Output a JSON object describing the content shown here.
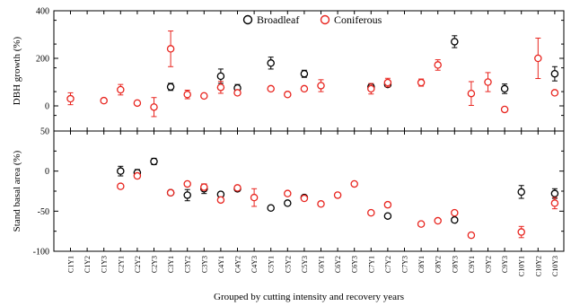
{
  "chart_data": [
    {
      "type": "scatter",
      "ylabel": "DBH growth (%)",
      "ylim": [
        -40,
        400
      ],
      "yticks": [
        0,
        200,
        400
      ],
      "categories": [
        "C1Y1",
        "C1Y2",
        "C1Y3",
        "C2Y1",
        "C2Y2",
        "C2Y3",
        "C3Y1",
        "C3Y2",
        "C3Y3",
        "C4Y1",
        "C4Y2",
        "C4Y3",
        "C5Y1",
        "C5Y2",
        "C5Y3",
        "C6Y1",
        "C6Y2",
        "C6Y3",
        "C7Y1",
        "C7Y2",
        "C7Y3",
        "C8Y1",
        "C8Y2",
        "C8Y3",
        "C9Y1",
        "C9Y2",
        "C9Y3",
        "C10Y1",
        "C10Y2",
        "C10Y3"
      ],
      "series": [
        {
          "name": "Broadleaf",
          "color": "#000000",
          "marker": "open-circle",
          "points": [
            {
              "x": "C3Y1",
              "y": 80,
              "err": 15
            },
            {
              "x": "C4Y1",
              "y": 125,
              "err": 30
            },
            {
              "x": "C4Y2",
              "y": 75,
              "err": 15
            },
            {
              "x": "C5Y1",
              "y": 180,
              "err": 25
            },
            {
              "x": "C5Y3",
              "y": 135,
              "err": 15
            },
            {
              "x": "C7Y1",
              "y": 80,
              "err": 10
            },
            {
              "x": "C7Y2",
              "y": 90,
              "err": 10
            },
            {
              "x": "C8Y3",
              "y": 270,
              "err": 25
            },
            {
              "x": "C9Y3",
              "y": 72,
              "err": 20
            },
            {
              "x": "C10Y3",
              "y": 135,
              "err": 30
            }
          ]
        },
        {
          "name": "Coniferous",
          "color": "#e8251f",
          "marker": "open-circle",
          "points": [
            {
              "x": "C1Y1",
              "y": 30,
              "err": 25
            },
            {
              "x": "C1Y3",
              "y": 22,
              "err": 4
            },
            {
              "x": "C2Y1",
              "y": 68,
              "err": 22
            },
            {
              "x": "C2Y2",
              "y": 12,
              "err": 6
            },
            {
              "x": "C2Y3",
              "y": -5,
              "err": 40
            },
            {
              "x": "C3Y1",
              "y": 240,
              "err": 75
            },
            {
              "x": "C3Y2",
              "y": 48,
              "err": 18
            },
            {
              "x": "C3Y3",
              "y": 42,
              "err": 6
            },
            {
              "x": "C4Y1",
              "y": 78,
              "err": 25
            },
            {
              "x": "C4Y2",
              "y": 55,
              "err": 6
            },
            {
              "x": "C5Y1",
              "y": 72,
              "err": 8
            },
            {
              "x": "C5Y2",
              "y": 48,
              "err": 5
            },
            {
              "x": "C5Y3",
              "y": 72,
              "err": 5
            },
            {
              "x": "C6Y1",
              "y": 85,
              "err": 25
            },
            {
              "x": "C7Y1",
              "y": 72,
              "err": 22
            },
            {
              "x": "C7Y2",
              "y": 98,
              "err": 18
            },
            {
              "x": "C8Y1",
              "y": 98,
              "err": 15
            },
            {
              "x": "C8Y2",
              "y": 172,
              "err": 22
            },
            {
              "x": "C9Y1",
              "y": 52,
              "err": 50
            },
            {
              "x": "C9Y2",
              "y": 100,
              "err": 40
            },
            {
              "x": "C9Y3",
              "y": -15,
              "err": 6
            },
            {
              "x": "C10Y2",
              "y": 200,
              "err": 85
            },
            {
              "x": "C10Y3",
              "y": 55,
              "err": 8
            }
          ]
        }
      ]
    },
    {
      "type": "scatter",
      "ylabel": "Stand basal area (%)",
      "xlabel": "Grouped by cutting intensity and recovery years",
      "ylim": [
        -100,
        50
      ],
      "yticks": [
        -100,
        -50,
        0,
        50
      ],
      "categories": [
        "C1Y1",
        "C1Y2",
        "C1Y3",
        "C2Y1",
        "C2Y2",
        "C2Y3",
        "C3Y1",
        "C3Y2",
        "C3Y3",
        "C4Y1",
        "C4Y2",
        "C4Y3",
        "C5Y1",
        "C5Y2",
        "C5Y3",
        "C6Y1",
        "C6Y2",
        "C6Y3",
        "C7Y1",
        "C7Y2",
        "C7Y3",
        "C8Y1",
        "C8Y2",
        "C8Y3",
        "C9Y1",
        "C9Y2",
        "C9Y3",
        "C10Y1",
        "C10Y2",
        "C10Y3"
      ],
      "series": [
        {
          "name": "Broadleaf",
          "color": "#000000",
          "marker": "open-circle",
          "points": [
            {
              "x": "C2Y1",
              "y": 0,
              "err": 6
            },
            {
              "x": "C2Y2",
              "y": -2,
              "err": 4
            },
            {
              "x": "C2Y3",
              "y": 12,
              "err": 4
            },
            {
              "x": "C3Y1",
              "y": -27,
              "err": 2
            },
            {
              "x": "C3Y2",
              "y": -30,
              "err": 7
            },
            {
              "x": "C3Y3",
              "y": -22,
              "err": 6
            },
            {
              "x": "C4Y1",
              "y": -29,
              "err": 3
            },
            {
              "x": "C4Y2",
              "y": -22,
              "err": 3
            },
            {
              "x": "C5Y1",
              "y": -46,
              "err": 2
            },
            {
              "x": "C5Y2",
              "y": -40,
              "err": 2
            },
            {
              "x": "C5Y3",
              "y": -33,
              "err": 3
            },
            {
              "x": "C7Y2",
              "y": -56,
              "err": 2
            },
            {
              "x": "C8Y3",
              "y": -61,
              "err": 2
            },
            {
              "x": "C10Y1",
              "y": -26,
              "err": 8
            },
            {
              "x": "C10Y3",
              "y": -28,
              "err": 6
            }
          ]
        },
        {
          "name": "Coniferous",
          "color": "#e8251f",
          "marker": "open-circle",
          "points": [
            {
              "x": "C2Y1",
              "y": -19,
              "err": 2
            },
            {
              "x": "C2Y2",
              "y": -6,
              "err": 3
            },
            {
              "x": "C3Y1",
              "y": -27,
              "err": 2
            },
            {
              "x": "C3Y2",
              "y": -16,
              "err": 2
            },
            {
              "x": "C3Y3",
              "y": -20,
              "err": 4
            },
            {
              "x": "C4Y1",
              "y": -36,
              "err": 3
            },
            {
              "x": "C4Y2",
              "y": -21,
              "err": 2
            },
            {
              "x": "C4Y3",
              "y": -33,
              "err": 11
            },
            {
              "x": "C5Y2",
              "y": -28,
              "err": 2
            },
            {
              "x": "C5Y3",
              "y": -34,
              "err": 2
            },
            {
              "x": "C6Y1",
              "y": -41,
              "err": 2
            },
            {
              "x": "C6Y2",
              "y": -30,
              "err": 3
            },
            {
              "x": "C6Y3",
              "y": -16,
              "err": 2
            },
            {
              "x": "C7Y1",
              "y": -52,
              "err": 2
            },
            {
              "x": "C7Y2",
              "y": -42,
              "err": 3
            },
            {
              "x": "C8Y1",
              "y": -66,
              "err": 2
            },
            {
              "x": "C8Y2",
              "y": -62,
              "err": 2
            },
            {
              "x": "C8Y3",
              "y": -52,
              "err": 2
            },
            {
              "x": "C9Y1",
              "y": -80,
              "err": 3
            },
            {
              "x": "C10Y1",
              "y": -76,
              "err": 7
            },
            {
              "x": "C10Y3",
              "y": -40,
              "err": 7
            }
          ]
        }
      ]
    }
  ],
  "legend": {
    "placement": "top-center",
    "items": [
      {
        "label": "Broadleaf",
        "color": "#000000"
      },
      {
        "label": "Coniferous",
        "color": "#e8251f"
      }
    ]
  }
}
